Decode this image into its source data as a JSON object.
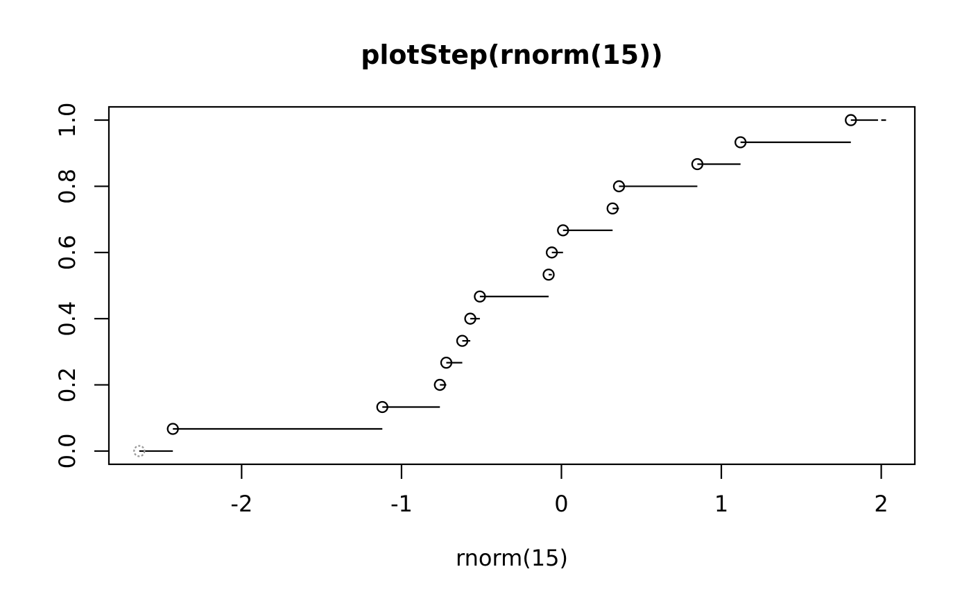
{
  "chart_data": {
    "type": "step",
    "title": "plotStep(rnorm(15))",
    "xlabel": "rnorm(15)",
    "ylabel": "",
    "n_points": 15,
    "x": [
      -2.64,
      -2.43,
      -1.12,
      -0.76,
      -0.72,
      -0.62,
      -0.57,
      -0.51,
      -0.08,
      -0.06,
      0.01,
      0.32,
      0.36,
      0.85,
      1.12,
      1.81
    ],
    "y": [
      0,
      0.067,
      0.133,
      0.2,
      0.267,
      0.333,
      0.4,
      0.467,
      0.533,
      0.6,
      0.667,
      0.733,
      0.8,
      0.867,
      0.933,
      1
    ],
    "x_ticks": {
      "values": [
        -2,
        -1,
        0,
        1,
        2
      ],
      "labels": [
        "-2",
        "-1",
        "0",
        "1",
        "2"
      ]
    },
    "y_ticks": {
      "values": [
        0,
        0.2,
        0.4,
        0.6,
        0.8,
        1.0
      ],
      "labels": [
        "0.0",
        "0.2",
        "0.4",
        "0.6",
        "0.8",
        "1.0"
      ]
    },
    "xlim": [
      -2.83,
      2.21
    ],
    "ylim": [
      -0.04,
      1.04
    ],
    "grid": "off",
    "legend": "none",
    "last_segment": {
      "solid_to": 1.98,
      "dash_from": 2.0,
      "dash_to": 2.03
    },
    "first_point": {
      "style": "dashed",
      "color": "#9a9a9a"
    },
    "colors": {
      "line": "#000000",
      "background": "#ffffff"
    }
  }
}
